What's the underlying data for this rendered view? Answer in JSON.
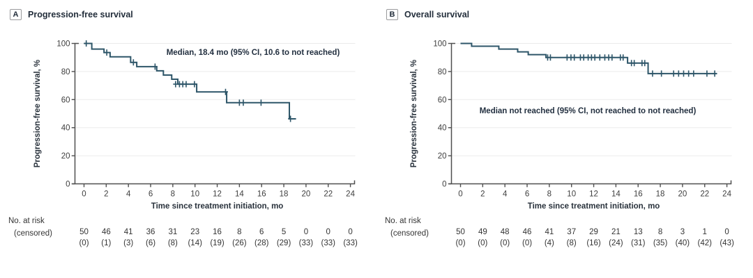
{
  "figure": {
    "risk_table_labels": {
      "line1": "No. at risk",
      "line2": "(censored)"
    }
  },
  "chart_data": [
    {
      "type": "line",
      "subtype": "kaplan-meier-step",
      "panel_letter": "A",
      "title": "Progression-free survival",
      "annotation": "Median, 18.4 mo (95% CI, 10.6 to not reached)",
      "xlabel": "Time since treatment initiation, mo",
      "ylabel": "Progression-free survival, %",
      "xlim": [
        0,
        24
      ],
      "ylim": [
        0,
        100
      ],
      "xticks": [
        0,
        2,
        4,
        6,
        8,
        10,
        12,
        14,
        16,
        18,
        20,
        22,
        24
      ],
      "yticks": [
        0,
        20,
        40,
        60,
        80,
        100
      ],
      "grid": "horizontal",
      "line_color": "#2d5568",
      "steps": [
        [
          0,
          100
        ],
        [
          0.7,
          96
        ],
        [
          1.8,
          93.5
        ],
        [
          2.35,
          90.5
        ],
        [
          4.2,
          86.5
        ],
        [
          4.75,
          83.5
        ],
        [
          6.55,
          80.5
        ],
        [
          7.15,
          77.5
        ],
        [
          7.9,
          74.5
        ],
        [
          8.45,
          71
        ],
        [
          10.15,
          65.5
        ],
        [
          12.85,
          57.8
        ],
        [
          18.5,
          46.3
        ]
      ],
      "curve_end": 19.1,
      "censor_marks": [
        [
          0.2,
          100
        ],
        [
          2.05,
          93.5
        ],
        [
          4.45,
          86.5
        ],
        [
          6.4,
          83.5
        ],
        [
          8.25,
          71
        ],
        [
          8.6,
          71
        ],
        [
          8.9,
          71
        ],
        [
          9.2,
          71
        ],
        [
          9.95,
          71
        ],
        [
          12.75,
          65.5
        ],
        [
          14.0,
          57.8
        ],
        [
          14.35,
          57.8
        ],
        [
          15.95,
          57.8
        ],
        [
          18.6,
          46.3
        ]
      ],
      "at_risk_counts": [
        50,
        46,
        41,
        36,
        31,
        23,
        16,
        8,
        6,
        5,
        0,
        0,
        0
      ],
      "censored_counts": [
        0,
        1,
        3,
        6,
        8,
        14,
        19,
        26,
        28,
        29,
        33,
        33,
        33
      ]
    },
    {
      "type": "line",
      "subtype": "kaplan-meier-step",
      "panel_letter": "B",
      "title": "Overall survival",
      "annotation": "Median not reached (95% CI, not reached to not reached)",
      "xlabel": "Time since treatment initiation, mo",
      "ylabel": "Progression-free survival, %",
      "xlim": [
        0,
        24
      ],
      "ylim": [
        0,
        100
      ],
      "xticks": [
        0,
        2,
        4,
        6,
        8,
        10,
        12,
        14,
        16,
        18,
        20,
        22,
        24
      ],
      "yticks": [
        0,
        20,
        40,
        60,
        80,
        100
      ],
      "grid": "horizontal",
      "line_color": "#2d5568",
      "steps": [
        [
          0,
          100
        ],
        [
          1.0,
          98
        ],
        [
          3.45,
          96
        ],
        [
          5.15,
          94
        ],
        [
          6.1,
          92
        ],
        [
          7.7,
          90
        ],
        [
          15.05,
          86
        ],
        [
          16.9,
          78.5
        ]
      ],
      "curve_end": 23.1,
      "censor_marks": [
        [
          7.85,
          90
        ],
        [
          8.1,
          90
        ],
        [
          9.6,
          90
        ],
        [
          9.95,
          90
        ],
        [
          10.25,
          90
        ],
        [
          10.8,
          90
        ],
        [
          11.1,
          90
        ],
        [
          11.5,
          90
        ],
        [
          11.8,
          90
        ],
        [
          12.1,
          90
        ],
        [
          12.55,
          90
        ],
        [
          13.0,
          90
        ],
        [
          13.35,
          90
        ],
        [
          13.65,
          90
        ],
        [
          14.4,
          90
        ],
        [
          14.65,
          90
        ],
        [
          15.4,
          86
        ],
        [
          15.65,
          86
        ],
        [
          16.35,
          86
        ],
        [
          16.6,
          86
        ],
        [
          17.3,
          78.5
        ],
        [
          18.1,
          78.5
        ],
        [
          19.2,
          78.5
        ],
        [
          19.65,
          78.5
        ],
        [
          20.1,
          78.5
        ],
        [
          20.55,
          78.5
        ],
        [
          21.0,
          78.5
        ],
        [
          22.2,
          78.5
        ],
        [
          22.9,
          78.5
        ]
      ],
      "at_risk_counts": [
        50,
        49,
        48,
        46,
        41,
        37,
        29,
        21,
        13,
        8,
        3,
        1,
        0
      ],
      "censored_counts": [
        0,
        0,
        0,
        0,
        4,
        8,
        16,
        24,
        31,
        35,
        40,
        42,
        43
      ]
    }
  ]
}
